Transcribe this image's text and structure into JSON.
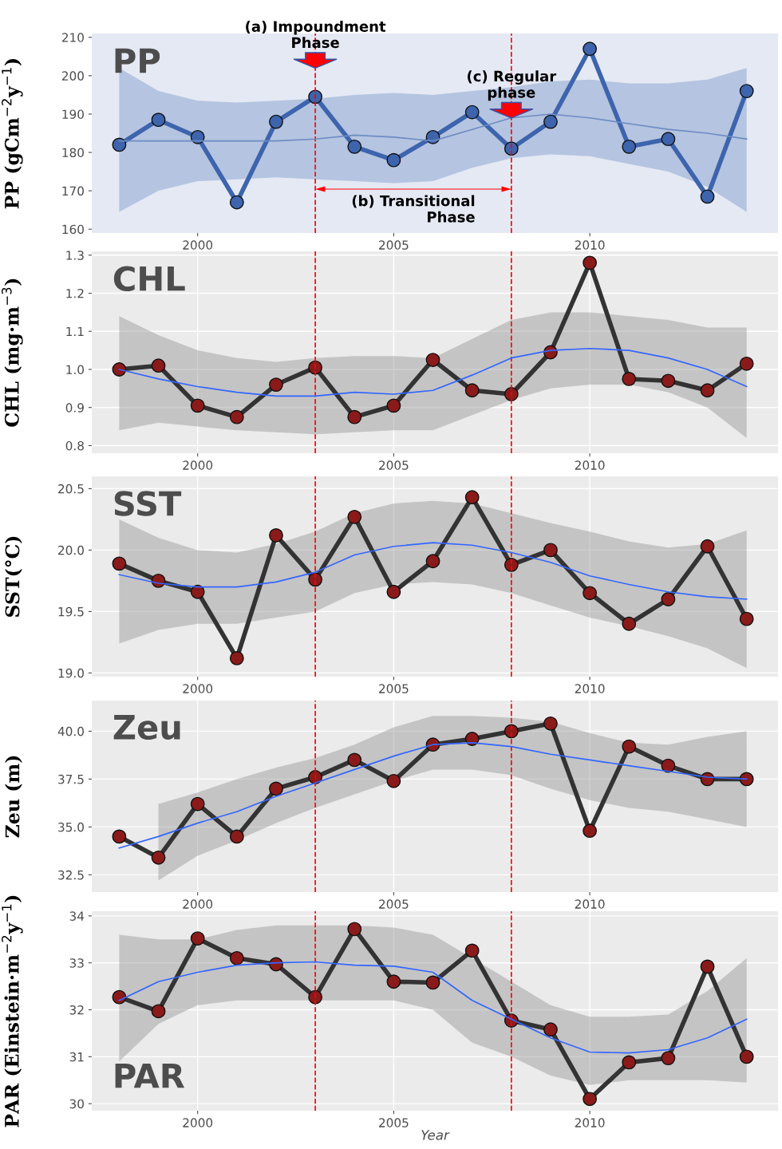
{
  "chart_data": [
    {
      "type": "line",
      "title": "PP",
      "ylabel": "PP (gCm$^{−2}$y$^{−1}$)",
      "x": [
        1998,
        1999,
        2000,
        2001,
        2002,
        2003,
        2004,
        2005,
        2006,
        2007,
        2008,
        2009,
        2010,
        2011,
        2012,
        2013,
        2014
      ],
      "xlim": [
        1997.3,
        2014.8
      ],
      "xticks": [
        2000,
        2005,
        2010
      ],
      "ylim": [
        159,
        211
      ],
      "yticks": [
        160,
        170,
        180,
        190,
        200,
        210
      ],
      "grid": false,
      "marker": "circle",
      "series": [
        {
          "color": "#3d64ad",
          "values": [
            182,
            188.5,
            184,
            167,
            188,
            194.5,
            181.5,
            178,
            184,
            190.5,
            181,
            188,
            207,
            181.5,
            183.5,
            168.5,
            196
          ]
        },
        {
          "marker": "none",
          "color": "#6d8cc4",
          "values": [
            183,
            183,
            183,
            183,
            183,
            183.5,
            184.5,
            184,
            183,
            186,
            189,
            190,
            189,
            187.5,
            186,
            185,
            183.5
          ],
          "lower": [
            164.5,
            170,
            172.5,
            173,
            173.5,
            173,
            172.5,
            172,
            172.5,
            176,
            178.5,
            179.5,
            179,
            177,
            175,
            171,
            164.5
          ],
          "upper": [
            202,
            196,
            193.5,
            193,
            193.5,
            194,
            195,
            195.5,
            195,
            196,
            197,
            198.5,
            199,
            198,
            198,
            199,
            202
          ]
        }
      ],
      "ref_lines": [
        {
          "axis": "x",
          "value": 2003,
          "color": "#ff0000",
          "line_style": "dashed"
        },
        {
          "axis": "x",
          "value": 2008,
          "color": "#ff0000",
          "line_style": "dashed"
        }
      ],
      "annotations": [
        {
          "text": "(a) Impoundment\nPhase",
          "x": 2003,
          "y": 201
        },
        "(b) Transitional\nPhase",
        {
          "text": "(c) Regular\nphase",
          "x": 2008,
          "y": 188
        }
      ]
    },
    {
      "type": "line",
      "title": "CHL",
      "ylabel": "CHL (mg·m$^{−3}$)",
      "x": [
        1998,
        1999,
        2000,
        2001,
        2002,
        2003,
        2004,
        2005,
        2006,
        2007,
        2008,
        2009,
        2010,
        2011,
        2012,
        2013,
        2014
      ],
      "xlim": [
        1997.3,
        2014.8
      ],
      "xticks": [
        2000,
        2005,
        2010
      ],
      "ylim": [
        0.78,
        1.31
      ],
      "yticks": [
        {
          "value": 0.8,
          "label": "0.8"
        },
        {
          "value": 0.9,
          "label": "0.9"
        },
        {
          "value": 1.0,
          "label": "1.0"
        },
        {
          "value": 1.1,
          "label": "1.1"
        },
        {
          "value": 1.2,
          "label": "1.2"
        },
        {
          "value": 1.3,
          "label": "1.3"
        }
      ],
      "grid": true,
      "marker": "circle",
      "series": [
        {
          "color": "#333333",
          "colors": [
            "#8b1a1a",
            "#8b1a1a",
            "#8b1a1a",
            "#8b1a1a",
            "#8b1a1a",
            "#8b1a1a",
            "#8b1a1a",
            "#8b1a1a",
            "#8b1a1a",
            "#8b1a1a",
            "#8b1a1a",
            "#8b1a1a",
            "#8b1a1a",
            "#8b1a1a",
            "#8b1a1a",
            "#8b1a1a",
            "#8b1a1a"
          ],
          "values": [
            1.0,
            1.01,
            0.905,
            0.875,
            0.96,
            1.005,
            0.875,
            0.905,
            1.025,
            0.945,
            0.935,
            1.045,
            1.28,
            0.975,
            0.97,
            0.945,
            1.015
          ]
        },
        {
          "marker": "none",
          "color": "#3366ff",
          "values": [
            1.0,
            0.975,
            0.955,
            0.94,
            0.93,
            0.93,
            0.94,
            0.935,
            0.945,
            0.985,
            1.03,
            1.05,
            1.055,
            1.05,
            1.03,
            1.0,
            0.955
          ],
          "lower": [
            0.84,
            0.86,
            0.85,
            0.84,
            0.835,
            0.83,
            0.835,
            0.84,
            0.84,
            0.88,
            0.92,
            0.95,
            0.96,
            0.96,
            0.94,
            0.9,
            0.82
          ],
          "upper": [
            1.14,
            1.09,
            1.05,
            1.03,
            1.02,
            1.03,
            1.035,
            1.035,
            1.03,
            1.08,
            1.13,
            1.15,
            1.15,
            1.14,
            1.13,
            1.11,
            1.11
          ]
        }
      ],
      "ref_lines": [
        {
          "axis": "x",
          "value": 2003,
          "color": "#ff0000",
          "line_style": "dashed"
        },
        {
          "axis": "x",
          "value": 2008,
          "color": "#ff0000",
          "line_style": "dashed"
        }
      ]
    },
    {
      "type": "line",
      "title": "SST",
      "ylabel": "SST(°C)",
      "x": [
        1998,
        1999,
        2000,
        2001,
        2002,
        2003,
        2004,
        2005,
        2006,
        2007,
        2008,
        2009,
        2010,
        2011,
        2012,
        2013,
        2014
      ],
      "xlim": [
        1997.3,
        2014.8
      ],
      "xticks": [
        2000,
        2005,
        2010
      ],
      "ylim": [
        18.97,
        20.6
      ],
      "yticks": [
        {
          "value": 19,
          "label": "19.0"
        },
        {
          "value": 19.5,
          "label": "19.5"
        },
        {
          "value": 20,
          "label": "20.0"
        },
        {
          "value": 20.5,
          "label": "20.5"
        }
      ],
      "grid": true,
      "marker": "circle",
      "series": [
        {
          "color": "#333333",
          "colors": [
            "#8b1a1a",
            "#8b1a1a",
            "#8b1a1a",
            "#8b1a1a",
            "#8b1a1a",
            "#8b1a1a",
            "#8b1a1a",
            "#8b1a1a",
            "#8b1a1a",
            "#8b1a1a",
            "#8b1a1a",
            "#8b1a1a",
            "#8b1a1a",
            "#8b1a1a",
            "#8b1a1a",
            "#8b1a1a",
            "#8b1a1a"
          ],
          "values": [
            19.89,
            19.75,
            19.66,
            19.12,
            20.12,
            19.76,
            20.27,
            19.66,
            19.91,
            20.43,
            19.88,
            20.0,
            19.65,
            19.4,
            19.6,
            20.03,
            19.44
          ]
        },
        {
          "marker": "none",
          "color": "#3366ff",
          "values": [
            19.8,
            19.73,
            19.7,
            19.7,
            19.74,
            19.82,
            19.96,
            20.03,
            20.06,
            20.04,
            19.98,
            19.9,
            19.79,
            19.72,
            19.66,
            19.62,
            19.6
          ],
          "lower": [
            19.24,
            19.35,
            19.4,
            19.4,
            19.45,
            19.5,
            19.65,
            19.72,
            19.74,
            19.72,
            19.65,
            19.55,
            19.45,
            19.38,
            19.3,
            19.2,
            19.04
          ],
          "upper": [
            20.25,
            20.1,
            20.0,
            19.98,
            20.05,
            20.15,
            20.3,
            20.38,
            20.4,
            20.38,
            20.3,
            20.22,
            20.15,
            20.07,
            20.02,
            20.05,
            20.16
          ]
        }
      ],
      "ref_lines": [
        {
          "axis": "x",
          "value": 2003,
          "color": "#ff0000",
          "line_style": "dashed"
        },
        {
          "axis": "x",
          "value": 2008,
          "color": "#ff0000",
          "line_style": "dashed"
        }
      ]
    },
    {
      "type": "line",
      "title": "Zeu",
      "ylabel": "Zeu (m)",
      "x": [
        1998,
        1999,
        2000,
        2001,
        2002,
        2003,
        2004,
        2005,
        2006,
        2007,
        2008,
        2009,
        2010,
        2011,
        2012,
        2013,
        2014
      ],
      "xlim": [
        1997.3,
        2014.8
      ],
      "xticks": [
        2000,
        2005,
        2010
      ],
      "ylim": [
        31.6,
        41.6
      ],
      "yticks": [
        32.5,
        {
          "value": 35,
          "label": "35.0"
        },
        37.5,
        {
          "value": 40,
          "label": "40.0"
        }
      ],
      "grid": true,
      "marker": "circle",
      "series": [
        {
          "color": "#333333",
          "colors": [
            "#8b1a1a",
            "#8b1a1a",
            "#8b1a1a",
            "#8b1a1a",
            "#8b1a1a",
            "#8b1a1a",
            "#8b1a1a",
            "#8b1a1a",
            "#8b1a1a",
            "#8b1a1a",
            "#8b1a1a",
            "#8b1a1a",
            "#8b1a1a",
            "#8b1a1a",
            "#8b1a1a",
            "#8b1a1a",
            "#8b1a1a"
          ],
          "values": [
            34.5,
            33.4,
            36.2,
            34.5,
            37.0,
            37.6,
            38.5,
            37.4,
            39.3,
            39.6,
            40.0,
            40.4,
            34.8,
            39.2,
            38.2,
            37.5,
            37.5
          ]
        },
        {
          "marker": "none",
          "color": "#3366ff",
          "values": [
            33.9,
            34.5,
            35.2,
            35.8,
            36.6,
            37.3,
            38.0,
            38.7,
            39.3,
            39.4,
            39.2,
            38.8,
            38.5,
            38.2,
            37.9,
            37.6,
            37.5
          ],
          "lower": [
            null,
            32.2,
            33.5,
            34.3,
            35.2,
            36.0,
            36.7,
            37.4,
            38.0,
            38.0,
            37.7,
            37.0,
            36.4,
            36.0,
            35.8,
            35.4,
            35.0
          ],
          "upper": [
            null,
            36.2,
            36.8,
            37.5,
            38.1,
            38.6,
            39.3,
            40.2,
            40.8,
            40.8,
            40.7,
            40.5,
            39.9,
            39.4,
            39.3,
            39.7,
            40.0
          ]
        }
      ],
      "ref_lines": [
        {
          "axis": "x",
          "value": 2003,
          "color": "#ff0000",
          "line_style": "dashed"
        },
        {
          "axis": "x",
          "value": 2008,
          "color": "#ff0000",
          "line_style": "dashed"
        }
      ]
    },
    {
      "type": "line",
      "title": "PAR",
      "ylabel": "PAR (Einstein·m$^{−2}$y$^{−1}$)",
      "xlabel": "Year",
      "x": [
        1998,
        1999,
        2000,
        2001,
        2002,
        2003,
        2004,
        2005,
        2006,
        2007,
        2008,
        2009,
        2010,
        2011,
        2012,
        2013,
        2014
      ],
      "xlim": [
        1997.3,
        2014.8
      ],
      "xticks": [
        2000,
        2005,
        2010
      ],
      "ylim": [
        29.85,
        34.1
      ],
      "yticks": [
        30,
        31,
        32,
        33,
        34
      ],
      "grid": true,
      "marker": "circle",
      "series": [
        {
          "color": "#333333",
          "colors": [
            "#8b1a1a",
            "#8b1a1a",
            "#8b1a1a",
            "#8b1a1a",
            "#8b1a1a",
            "#8b1a1a",
            "#8b1a1a",
            "#8b1a1a",
            "#8b1a1a",
            "#8b1a1a",
            "#8b1a1a",
            "#8b1a1a",
            "#8b1a1a",
            "#8b1a1a",
            "#8b1a1a",
            "#8b1a1a",
            "#8b1a1a"
          ],
          "values": [
            32.27,
            31.97,
            33.52,
            33.1,
            32.97,
            32.27,
            33.72,
            32.6,
            32.58,
            33.26,
            31.77,
            31.58,
            30.1,
            30.88,
            30.97,
            32.92,
            31.0
          ]
        },
        {
          "marker": "none",
          "color": "#3366ff",
          "values": [
            32.2,
            32.6,
            32.8,
            32.95,
            33.0,
            33.02,
            32.95,
            32.93,
            32.8,
            32.2,
            31.8,
            31.4,
            31.1,
            31.08,
            31.15,
            31.4,
            31.8
          ],
          "lower": [
            30.9,
            31.7,
            32.1,
            32.2,
            32.2,
            32.2,
            32.2,
            32.2,
            32.0,
            31.3,
            31.0,
            30.6,
            30.4,
            30.5,
            30.5,
            30.5,
            30.45
          ],
          "upper": [
            33.6,
            33.5,
            33.5,
            33.7,
            33.8,
            33.8,
            33.8,
            33.75,
            33.6,
            33.1,
            32.6,
            32.1,
            31.85,
            31.85,
            31.9,
            32.4,
            33.1
          ]
        }
      ],
      "ref_lines": [
        {
          "axis": "x",
          "value": 2003,
          "color": "#ff0000",
          "line_style": "dashed"
        },
        {
          "axis": "x",
          "value": 2008,
          "color": "#ff0000",
          "line_style": "dashed"
        }
      ]
    }
  ]
}
